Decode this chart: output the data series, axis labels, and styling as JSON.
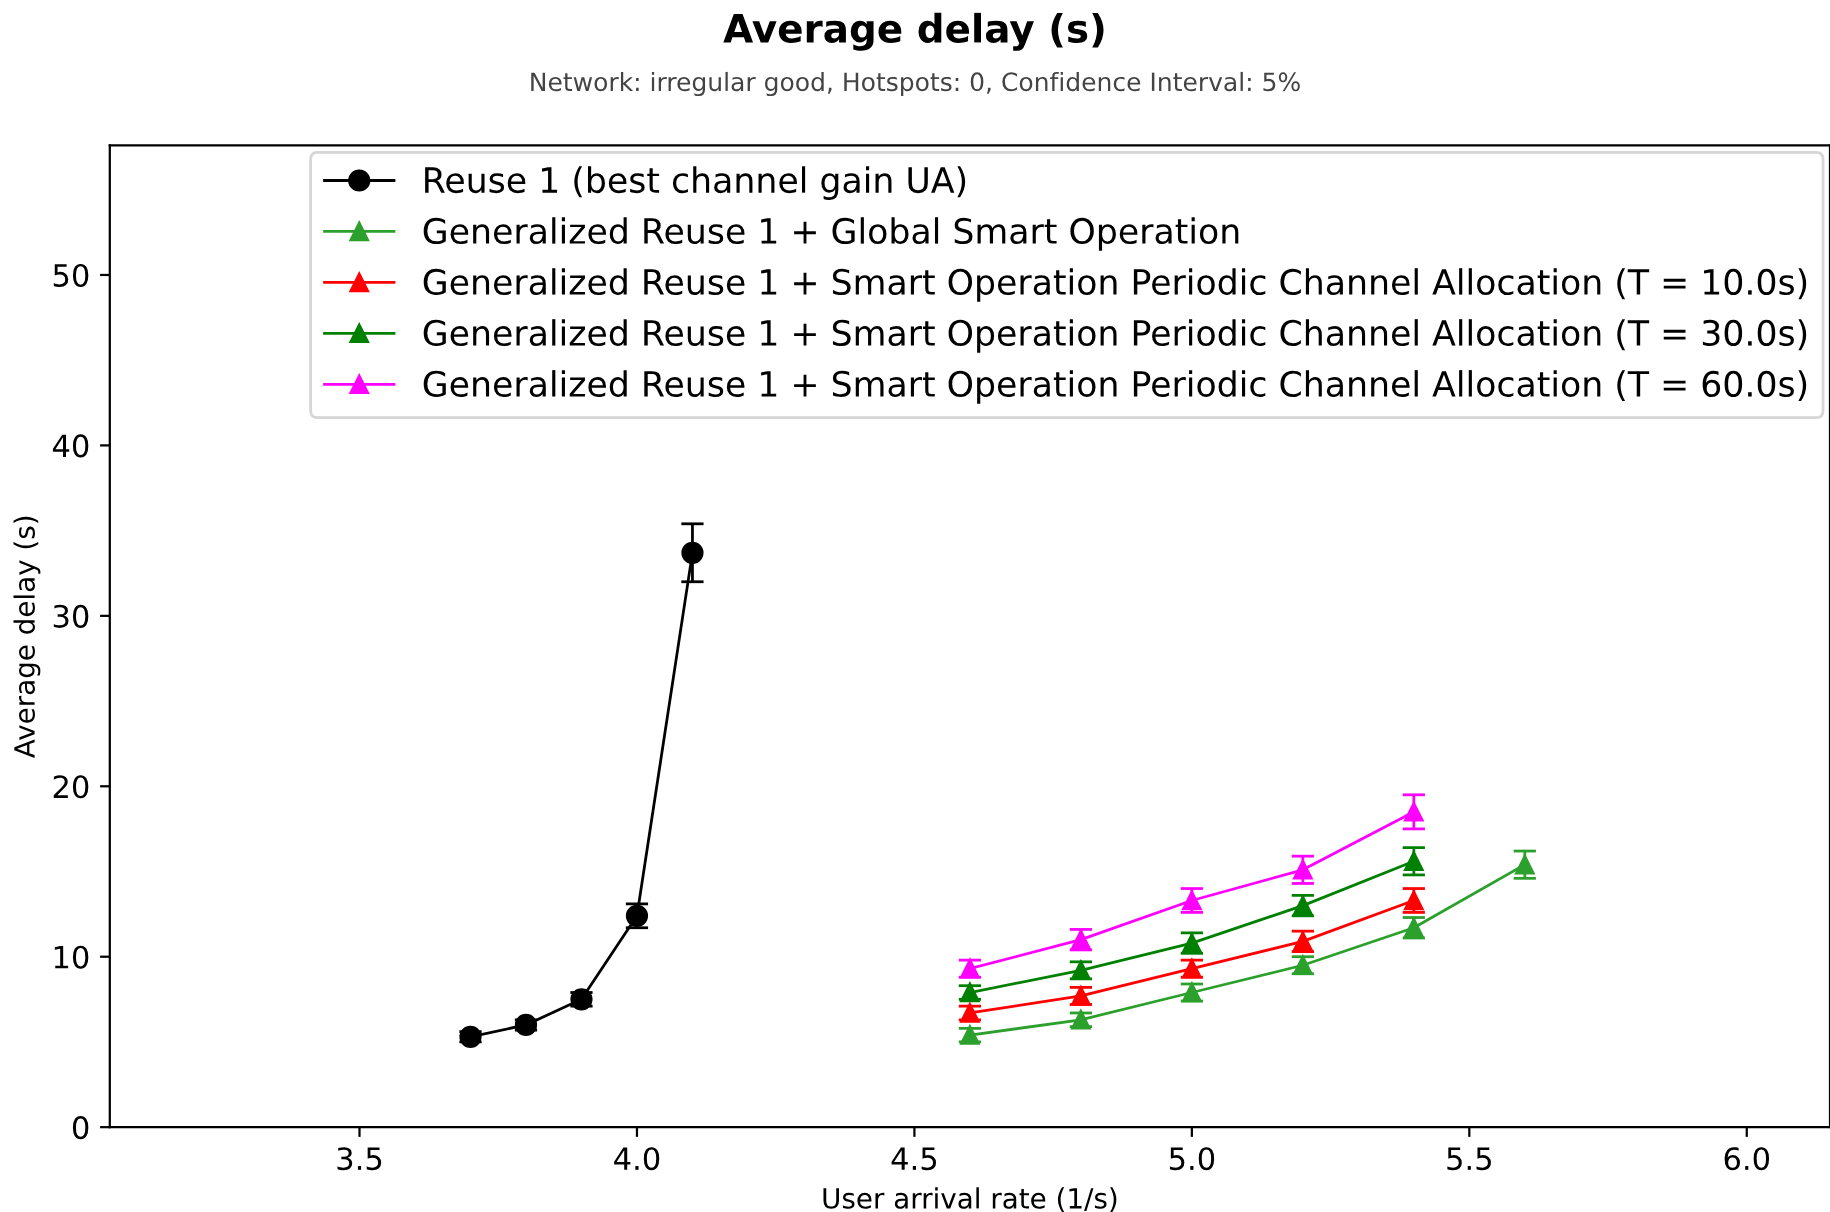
{
  "chart_data": {
    "type": "line",
    "title": "Average delay (s)",
    "subtitle": "Network: irregular good, Hotspots: 0, Confidence Interval: 5%",
    "xlabel": "User arrival rate (1/s)",
    "ylabel": "Average delay (s)",
    "xlim": [
      3.05,
      6.15
    ],
    "xticks": [
      3.5,
      {
        "value": 4,
        "label": "4.0"
      },
      4.5,
      {
        "value": 5,
        "label": "5.0"
      },
      5.5,
      {
        "value": 6,
        "label": "6.0"
      }
    ],
    "ylim": [
      0,
      57.6
    ],
    "yticks": [
      0,
      10,
      20,
      30,
      40,
      50
    ],
    "grid": false,
    "legend": "top right",
    "series": [
      {
        "name": "Reuse 1 (best channel gain UA)",
        "color": "#000000",
        "marker": "circle",
        "x": [
          3.7,
          3.8,
          3.9,
          4.0,
          4.1
        ],
        "values": [
          5.3,
          6.0,
          7.5,
          12.4,
          33.7
        ],
        "errors": [
          0.3,
          0.3,
          0.4,
          0.7,
          [
            32.0,
            35.4
          ]
        ]
      },
      {
        "name": "Generalized Reuse 1 + Global Smart Operation",
        "color": "#2ca02c",
        "marker": "triangle",
        "x": [
          4.6,
          4.8,
          5.0,
          5.2,
          5.4,
          5.6
        ],
        "values": [
          5.4,
          6.3,
          7.9,
          9.5,
          11.7,
          15.4
        ],
        "errors": [
          0.4,
          0.4,
          0.5,
          0.5,
          0.6,
          0.8
        ]
      },
      {
        "name": "Generalized Reuse 1 + Smart Operation Periodic Channel Allocation (T = 10.0s)",
        "color": "#ff0000",
        "marker": "triangle",
        "x": [
          4.6,
          4.8,
          5.0,
          5.2,
          5.4
        ],
        "values": [
          6.7,
          7.7,
          9.3,
          10.9,
          13.3
        ],
        "errors": [
          0.4,
          0.5,
          0.5,
          0.6,
          0.7
        ]
      },
      {
        "name": "Generalized Reuse 1 + Smart Operation Periodic Channel Allocation (T = 30.0s)",
        "color": "#008000",
        "marker": "triangle",
        "x": [
          4.6,
          4.8,
          5.0,
          5.2,
          5.4
        ],
        "values": [
          7.9,
          9.2,
          10.8,
          13.0,
          15.6
        ],
        "errors": [
          0.4,
          0.5,
          0.6,
          0.6,
          0.8
        ]
      },
      {
        "name": "Generalized Reuse 1 + Smart Operation Periodic Channel Allocation (T = 60.0s)",
        "color": "#ff00ff",
        "marker": "triangle",
        "x": [
          4.6,
          4.8,
          5.0,
          5.2,
          5.4
        ],
        "values": [
          9.3,
          11.0,
          13.3,
          15.1,
          18.5
        ],
        "errors": [
          0.5,
          0.6,
          0.7,
          0.8,
          1.0
        ]
      }
    ]
  }
}
